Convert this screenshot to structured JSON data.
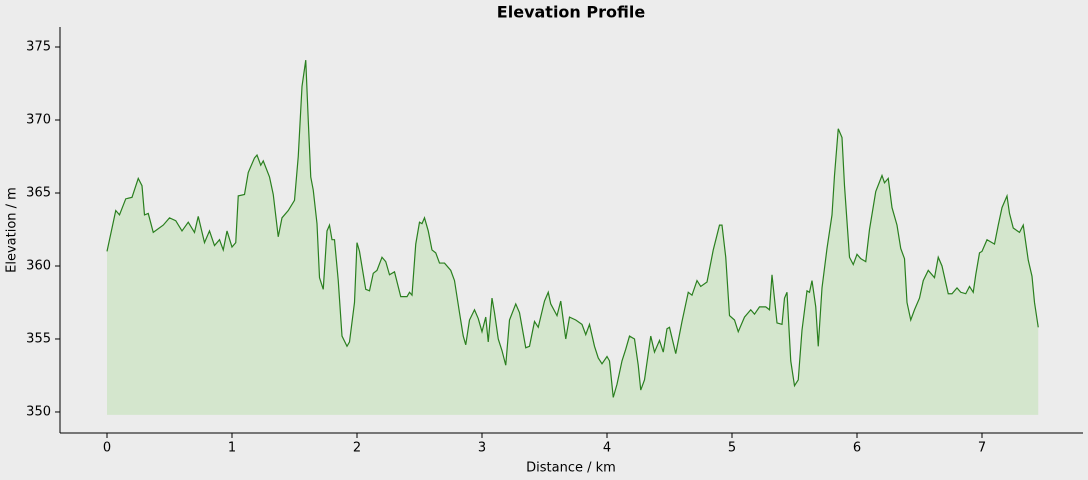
{
  "chart_data": {
    "type": "area",
    "title": "Elevation Profile",
    "x_label": "Distance / km",
    "y_label": "Elevation / m",
    "line_color": "#2a7f1f",
    "fill_color": "#d4e6cd",
    "fill_baseline": 349.8,
    "xlim": [
      -0.376,
      7.808
    ],
    "ylim": [
      348.56,
      376.37
    ],
    "xticks": [
      0,
      1,
      2,
      3,
      4,
      5,
      6,
      7
    ],
    "yticks": [
      350,
      355,
      360,
      365,
      370,
      375
    ],
    "x": [
      0,
      0.05,
      0.07,
      0.1,
      0.15,
      0.2,
      0.25,
      0.28,
      0.3,
      0.33,
      0.37,
      0.45,
      0.5,
      0.55,
      0.6,
      0.65,
      0.7,
      0.73,
      0.78,
      0.82,
      0.86,
      0.9,
      0.93,
      0.96,
      1.0,
      1.03,
      1.05,
      1.1,
      1.13,
      1.18,
      1.2,
      1.23,
      1.25,
      1.3,
      1.33,
      1.37,
      1.4,
      1.45,
      1.5,
      1.53,
      1.56,
      1.59,
      1.61,
      1.63,
      1.65,
      1.68,
      1.7,
      1.73,
      1.76,
      1.78,
      1.8,
      1.82,
      1.85,
      1.88,
      1.92,
      1.94,
      1.98,
      2.0,
      2.02,
      2.07,
      2.1,
      2.13,
      2.16,
      2.2,
      2.23,
      2.26,
      2.3,
      2.35,
      2.4,
      2.42,
      2.44,
      2.47,
      2.5,
      2.52,
      2.54,
      2.57,
      2.6,
      2.63,
      2.66,
      2.7,
      2.75,
      2.78,
      2.82,
      2.85,
      2.87,
      2.9,
      2.94,
      2.97,
      3.0,
      3.03,
      3.05,
      3.08,
      3.1,
      3.13,
      3.16,
      3.19,
      3.22,
      3.27,
      3.3,
      3.35,
      3.38,
      3.42,
      3.45,
      3.5,
      3.53,
      3.55,
      3.6,
      3.63,
      3.67,
      3.7,
      3.75,
      3.8,
      3.83,
      3.86,
      3.9,
      3.93,
      3.96,
      4.0,
      4.02,
      4.05,
      4.08,
      4.12,
      4.15,
      4.18,
      4.22,
      4.25,
      4.27,
      4.3,
      4.35,
      4.38,
      4.42,
      4.45,
      4.48,
      4.5,
      4.55,
      4.6,
      4.65,
      4.68,
      4.72,
      4.75,
      4.8,
      4.85,
      4.9,
      4.92,
      4.95,
      4.98,
      5.02,
      5.05,
      5.1,
      5.15,
      5.18,
      5.22,
      5.27,
      5.3,
      5.32,
      5.36,
      5.4,
      5.42,
      5.44,
      5.47,
      5.5,
      5.53,
      5.56,
      5.6,
      5.62,
      5.64,
      5.67,
      5.69,
      5.72,
      5.76,
      5.8,
      5.82,
      5.85,
      5.88,
      5.9,
      5.94,
      5.97,
      6.0,
      6.03,
      6.07,
      6.1,
      6.15,
      6.2,
      6.22,
      6.25,
      6.28,
      6.32,
      6.35,
      6.38,
      6.4,
      6.43,
      6.46,
      6.5,
      6.53,
      6.57,
      6.62,
      6.65,
      6.68,
      6.73,
      6.76,
      6.8,
      6.83,
      6.87,
      6.9,
      6.93,
      6.95,
      6.98,
      7.0,
      7.04,
      7.08,
      7.1,
      7.13,
      7.16,
      7.2,
      7.22,
      7.25,
      7.3,
      7.33,
      7.37,
      7.4,
      7.42,
      7.45
    ],
    "values": [
      361,
      363,
      363.8,
      363.5,
      364.6,
      364.7,
      366,
      365.5,
      363.5,
      363.6,
      362.3,
      362.8,
      363.3,
      363.1,
      362.4,
      363,
      362.3,
      363.4,
      361.6,
      362.4,
      361.4,
      361.8,
      361.1,
      362.4,
      361.3,
      361.6,
      364.8,
      364.9,
      366.4,
      367.4,
      367.6,
      366.9,
      367.2,
      366.1,
      364.9,
      362,
      363.3,
      363.8,
      364.5,
      367.5,
      372.3,
      374.1,
      370,
      366.1,
      365.2,
      362.9,
      359.2,
      358.4,
      362.4,
      362.8,
      361.8,
      361.8,
      359,
      355.2,
      354.5,
      354.8,
      357.5,
      361.6,
      361,
      358.4,
      358.3,
      359.5,
      359.7,
      360.6,
      360.3,
      359.4,
      359.6,
      357.9,
      357.9,
      358.2,
      358,
      361.5,
      363,
      362.9,
      363.3,
      362.4,
      361.1,
      360.9,
      360.2,
      360.2,
      359.7,
      359,
      356.8,
      355.2,
      354.6,
      356.3,
      357,
      356.4,
      355.5,
      356.5,
      354.8,
      357.8,
      356.8,
      355,
      354.2,
      353.2,
      356.3,
      357.4,
      356.8,
      354.4,
      354.5,
      356.2,
      355.8,
      357.6,
      358.2,
      357.4,
      356.6,
      357.6,
      355,
      356.5,
      356.3,
      356,
      355.3,
      356,
      354.5,
      353.7,
      353.3,
      353.8,
      353.5,
      351,
      351.9,
      353.5,
      354.3,
      355.2,
      355,
      353.2,
      351.5,
      352.2,
      355.2,
      354.1,
      354.9,
      354.1,
      355.7,
      355.8,
      354,
      356.2,
      358.2,
      358,
      359,
      358.6,
      358.9,
      361.1,
      362.8,
      362.8,
      360.6,
      356.6,
      356.3,
      355.5,
      356.5,
      357,
      356.7,
      357.2,
      357.2,
      357,
      359.4,
      356.1,
      356,
      357.8,
      358.2,
      353.5,
      351.8,
      352.2,
      355.6,
      358.3,
      358.2,
      359,
      357.2,
      354.5,
      358.5,
      361.2,
      363.5,
      366.2,
      369.4,
      368.8,
      365.5,
      360.6,
      360.1,
      360.8,
      360.5,
      360.3,
      362.5,
      365.1,
      366.2,
      365.7,
      366,
      364,
      362.8,
      361.2,
      360.5,
      357.5,
      356.3,
      357,
      357.8,
      359,
      359.7,
      359.2,
      360.6,
      360,
      358.1,
      358.1,
      358.5,
      358.2,
      358.1,
      358.6,
      358.2,
      359.4,
      360.9,
      361,
      361.8,
      361.6,
      361.5,
      362.8,
      364,
      364.8,
      363.6,
      362.6,
      362.3,
      362.8,
      360.4,
      359.3,
      357.5,
      355.8
    ]
  }
}
